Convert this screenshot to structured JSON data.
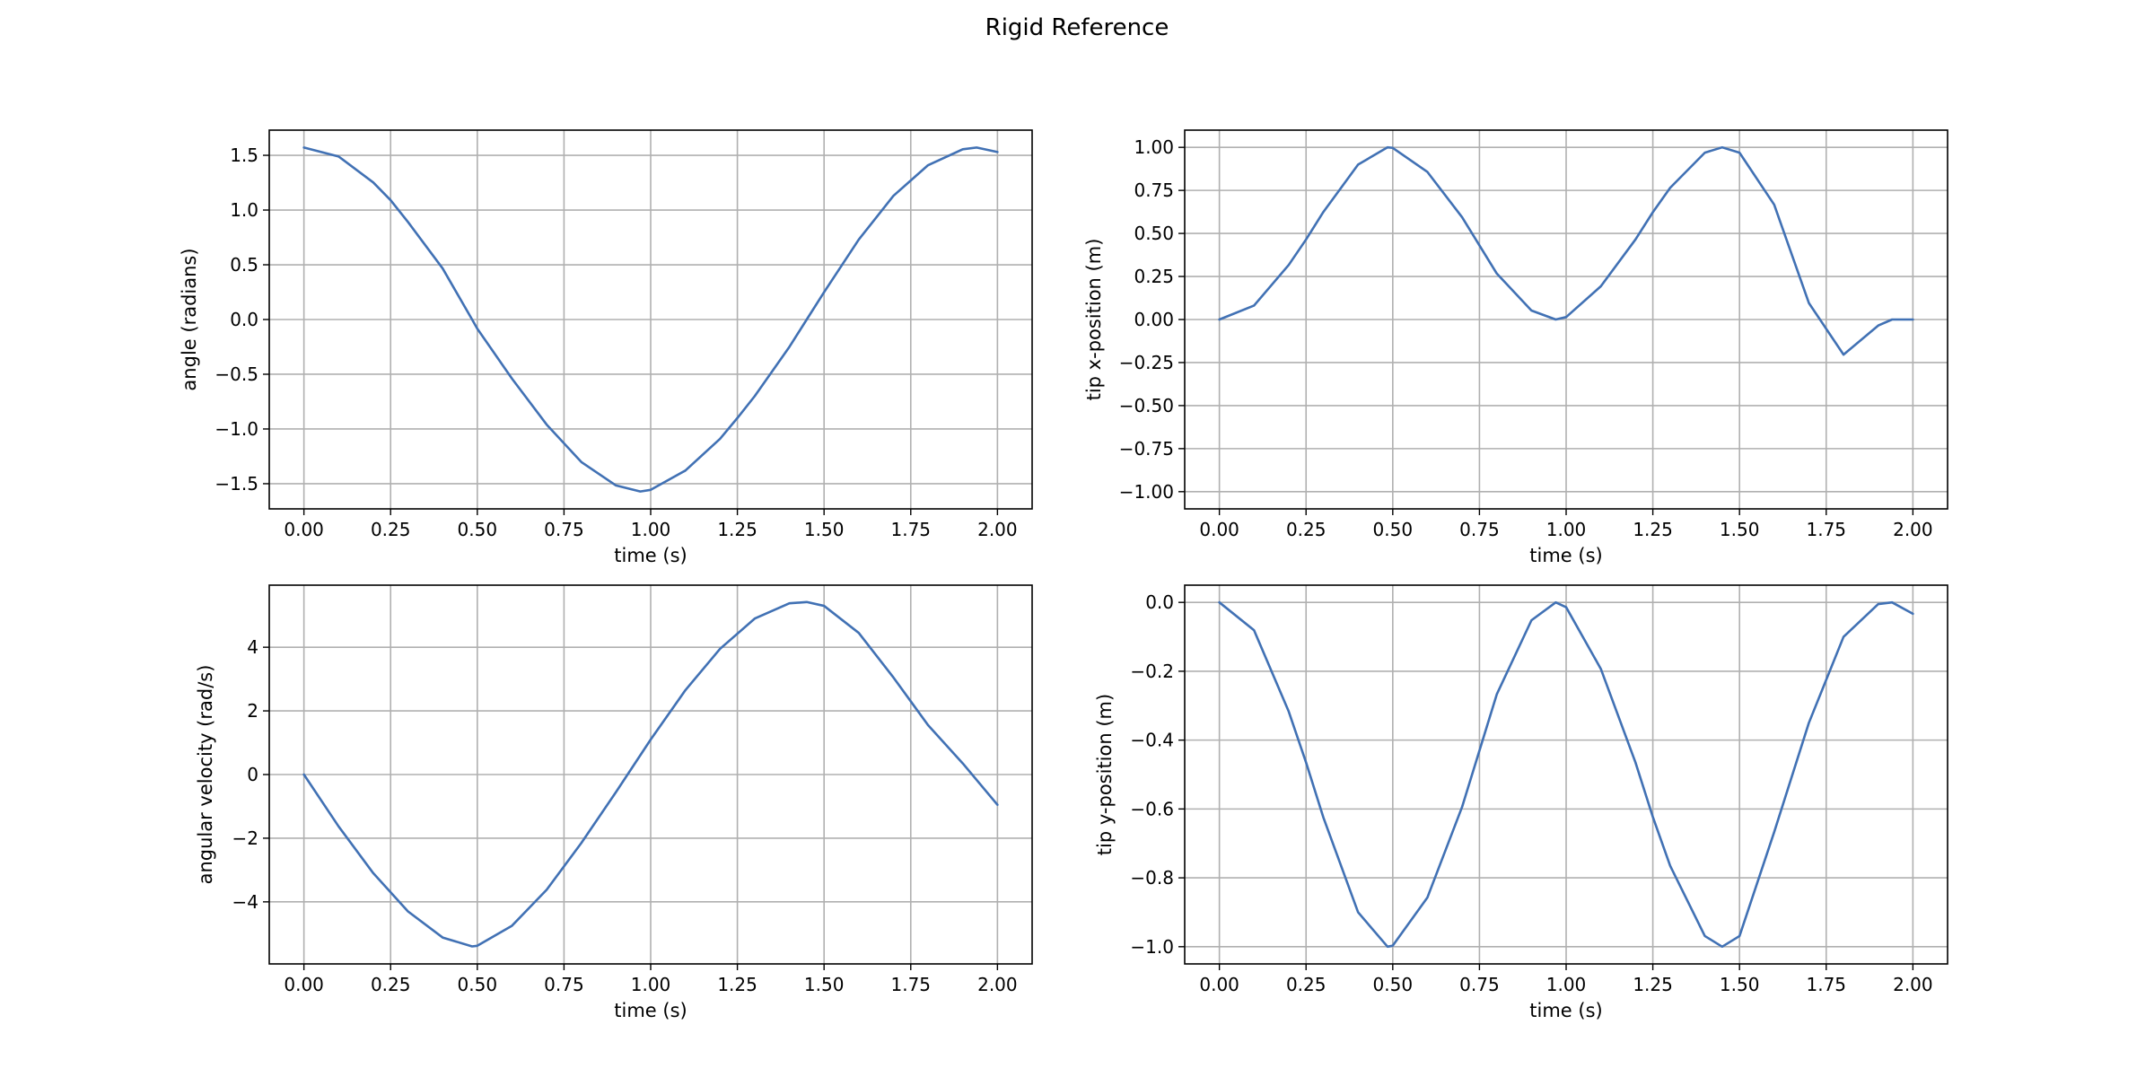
{
  "figure": {
    "title": "Rigid Reference"
  },
  "colors": {
    "line": "#4171b4",
    "grid": "#b0b0b0",
    "frame": "#000000"
  },
  "chart_data": [
    {
      "type": "line",
      "xlabel": "time (s)",
      "ylabel": "angle (radians)",
      "xlim": [
        -0.1,
        2.1
      ],
      "ylim": [
        -1.73,
        1.73
      ],
      "x_ticks": [
        0.0,
        0.25,
        0.5,
        0.75,
        1.0,
        1.25,
        1.5,
        1.75,
        2.0
      ],
      "x_tick_labels": [
        "0.00",
        "0.25",
        "0.50",
        "0.75",
        "1.00",
        "1.25",
        "1.50",
        "1.75",
        "2.00"
      ],
      "y_ticks": [
        1.5,
        1.0,
        0.5,
        0.0,
        -0.5,
        -1.0,
        -1.5
      ],
      "y_tick_labels": [
        "1.5",
        "1.0",
        "0.5",
        "0.0",
        "−0.5",
        "−1.0",
        "−1.5"
      ],
      "grid": true,
      "series": [
        {
          "x": [
            0.0,
            0.1,
            0.2,
            0.25,
            0.3,
            0.4,
            0.485,
            0.5,
            0.6,
            0.7,
            0.8,
            0.9,
            0.97,
            1.0,
            1.1,
            1.2,
            1.25,
            1.3,
            1.4,
            1.45,
            1.5,
            1.6,
            1.7,
            1.8,
            1.9,
            1.94,
            2.0
          ],
          "y": [
            1.571,
            1.489,
            1.252,
            1.09,
            0.891,
            0.467,
            0.0,
            -0.084,
            -0.54,
            -0.96,
            -1.302,
            -1.516,
            -1.571,
            -1.556,
            -1.38,
            -1.09,
            -0.9,
            -0.7,
            -0.25,
            0.0,
            0.25,
            0.73,
            1.13,
            1.41,
            1.555,
            1.571,
            1.53
          ]
        }
      ]
    },
    {
      "type": "line",
      "xlabel": "time (s)",
      "ylabel": "tip x-position (m)",
      "xlim": [
        -0.1,
        2.1
      ],
      "ylim": [
        -1.1,
        1.1
      ],
      "x_ticks": [
        0.0,
        0.25,
        0.5,
        0.75,
        1.0,
        1.25,
        1.5,
        1.75,
        2.0
      ],
      "x_tick_labels": [
        "0.00",
        "0.25",
        "0.50",
        "0.75",
        "1.00",
        "1.25",
        "1.50",
        "1.75",
        "2.00"
      ],
      "y_ticks": [
        1.0,
        0.75,
        0.5,
        0.25,
        0.0,
        -0.25,
        -0.5,
        -0.75,
        -1.0
      ],
      "y_tick_labels": [
        "1.00",
        "0.75",
        "0.50",
        "0.25",
        "0.00",
        "−0.25",
        "−0.50",
        "−0.75",
        "−1.00"
      ],
      "grid": true,
      "series": [
        {
          "x": [
            0.0,
            0.1,
            0.2,
            0.25,
            0.3,
            0.4,
            0.485,
            0.5,
            0.6,
            0.7,
            0.8,
            0.9,
            0.97,
            1.0,
            1.1,
            1.2,
            1.25,
            1.3,
            1.4,
            1.45,
            1.5,
            1.6,
            1.7,
            1.8,
            1.9,
            1.94,
            2.0
          ],
          "y": [
            0.0,
            0.081,
            0.317,
            0.465,
            0.625,
            0.9,
            1.0,
            0.997,
            0.857,
            0.594,
            0.267,
            0.052,
            0.0,
            0.014,
            0.193,
            0.465,
            0.623,
            0.765,
            0.969,
            1.0,
            0.969,
            0.667,
            0.096,
            -0.204,
            -0.035,
            0.0,
            0.0
          ]
        }
      ]
    },
    {
      "type": "line",
      "xlabel": "time (s)",
      "ylabel": "angular velocity (rad/s)",
      "xlim": [
        -0.1,
        2.1
      ],
      "ylim": [
        -5.95,
        5.95
      ],
      "x_ticks": [
        0.0,
        0.25,
        0.5,
        0.75,
        1.0,
        1.25,
        1.5,
        1.75,
        2.0
      ],
      "x_tick_labels": [
        "0.00",
        "0.25",
        "0.50",
        "0.75",
        "1.00",
        "1.25",
        "1.50",
        "1.75",
        "2.00"
      ],
      "y_ticks": [
        4,
        2,
        0,
        -2,
        -4
      ],
      "y_tick_labels": [
        "4",
        "2",
        "0",
        "−2",
        "−4"
      ],
      "grid": true,
      "series": [
        {
          "x": [
            0.0,
            0.1,
            0.2,
            0.3,
            0.4,
            0.485,
            0.5,
            0.6,
            0.7,
            0.8,
            0.9,
            1.0,
            1.1,
            1.2,
            1.3,
            1.4,
            1.45,
            1.5,
            1.6,
            1.7,
            1.8,
            1.9,
            2.0
          ],
          "y": [
            0.0,
            -1.63,
            -3.1,
            -4.3,
            -5.12,
            -5.4,
            -5.38,
            -4.75,
            -3.62,
            -2.15,
            -0.55,
            1.1,
            2.65,
            3.95,
            4.9,
            5.38,
            5.42,
            5.3,
            4.45,
            3.05,
            1.55,
            0.35,
            -0.95
          ]
        }
      ]
    },
    {
      "type": "line",
      "xlabel": "time (s)",
      "ylabel": "tip y-position (m)",
      "xlim": [
        -0.1,
        2.1
      ],
      "ylim": [
        -1.05,
        0.05
      ],
      "x_ticks": [
        0.0,
        0.25,
        0.5,
        0.75,
        1.0,
        1.25,
        1.5,
        1.75,
        2.0
      ],
      "x_tick_labels": [
        "0.00",
        "0.25",
        "0.50",
        "0.75",
        "1.00",
        "1.25",
        "1.50",
        "1.75",
        "2.00"
      ],
      "y_ticks": [
        0.0,
        -0.2,
        -0.4,
        -0.6,
        -0.8,
        -1.0
      ],
      "y_tick_labels": [
        "0.0",
        "−0.2",
        "−0.4",
        "−0.6",
        "−0.8",
        "−1.0"
      ],
      "grid": true,
      "series": [
        {
          "x": [
            0.0,
            0.1,
            0.2,
            0.25,
            0.3,
            0.4,
            0.485,
            0.5,
            0.6,
            0.7,
            0.8,
            0.9,
            0.97,
            1.0,
            1.1,
            1.2,
            1.25,
            1.3,
            1.4,
            1.45,
            1.5,
            1.6,
            1.7,
            1.8,
            1.9,
            1.94,
            2.0
          ],
          "y": [
            0.0,
            -0.081,
            -0.317,
            -0.465,
            -0.625,
            -0.9,
            -1.0,
            -0.997,
            -0.857,
            -0.594,
            -0.267,
            -0.052,
            0.0,
            -0.014,
            -0.193,
            -0.465,
            -0.623,
            -0.765,
            -0.969,
            -1.0,
            -0.969,
            -0.667,
            -0.35,
            -0.1,
            -0.005,
            0.0,
            -0.033
          ]
        }
      ]
    }
  ]
}
